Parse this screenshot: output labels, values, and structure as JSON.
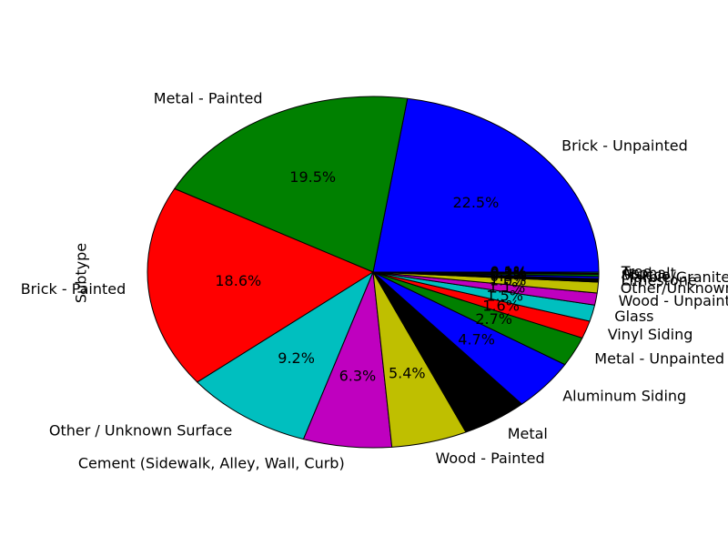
{
  "chart_data": {
    "type": "pie",
    "ylabel": "Subtype",
    "slices": [
      {
        "label": "Brick - Unpainted",
        "percent": 22.5,
        "pct_label": "22.5%",
        "color": "#0000ff"
      },
      {
        "label": "Metal - Painted",
        "percent": 19.5,
        "pct_label": "19.5%",
        "color": "#008000"
      },
      {
        "label": "Brick - Painted",
        "percent": 18.6,
        "pct_label": "18.6%",
        "color": "#ff0000"
      },
      {
        "label": "Other / Unknown Surface",
        "percent": 9.2,
        "pct_label": "9.2%",
        "color": "#00bfbf"
      },
      {
        "label": "Cement (Sidewalk, Alley, Wall, Curb)",
        "percent": 6.3,
        "pct_label": "6.3%",
        "color": "#bf00bf"
      },
      {
        "label": "Wood - Painted",
        "percent": 5.4,
        "pct_label": "5.4%",
        "color": "#bfbf00"
      },
      {
        "label": "Metal",
        "percent": 4.7,
        "pct_label": "",
        "color": "#000000"
      },
      {
        "label": "Aluminum Siding",
        "percent": 4.7,
        "pct_label": "4.7%",
        "color": "#0000ff"
      },
      {
        "label": "Metal - Unpainted",
        "percent": 2.7,
        "pct_label": "2.7%",
        "color": "#008000"
      },
      {
        "label": "Vinyl Siding",
        "percent": 1.6,
        "pct_label": "1.6%",
        "color": "#ff0000"
      },
      {
        "label": "Glass",
        "percent": 1.5,
        "pct_label": "1.5%",
        "color": "#00bfbf"
      },
      {
        "label": "Wood - Unpainted",
        "percent": 1.1,
        "pct_label": "1.1%",
        "color": "#bf00bf"
      },
      {
        "label": "Other/Unknown",
        "percent": 1.0,
        "pct_label": "1.0%",
        "color": "#bfbf00"
      },
      {
        "label": "Limestone",
        "percent": 0.3,
        "pct_label": "0.3%",
        "color": "#000000"
      },
      {
        "label": "Marble/Granite",
        "percent": 0.2,
        "pct_label": "0.2%",
        "color": "#0000ff"
      },
      {
        "label": "Stucco",
        "percent": 0.2,
        "pct_label": "0.2%",
        "color": "#008000"
      },
      {
        "label": "Asphalt",
        "percent": 0.1,
        "pct_label": "0.1%",
        "color": "#ff0000"
      },
      {
        "label": "Tree",
        "percent": 0.1,
        "pct_label": "0.1%",
        "color": "#00bfbf"
      }
    ]
  }
}
